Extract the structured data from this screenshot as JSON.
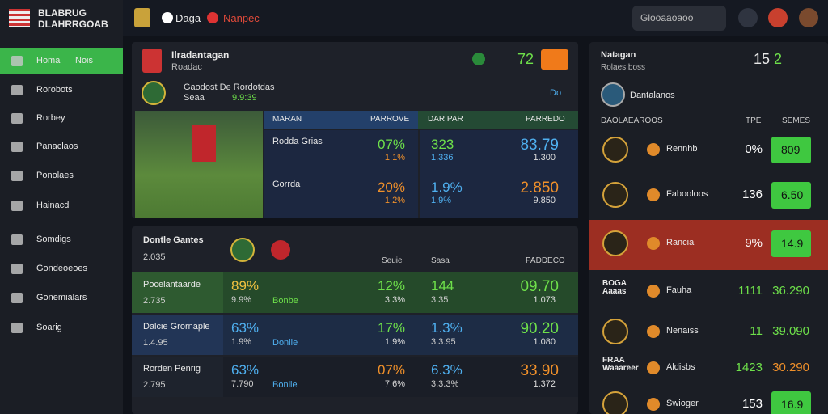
{
  "brand": {
    "line1": "BLABRUG",
    "line2": "DLAHRRGOAB"
  },
  "topnav": {
    "tabs": [
      "Daga",
      "Nanpec"
    ],
    "search": "Glooaaoaoo"
  },
  "sidebar": [
    {
      "label": "Homa",
      "badge": "Nois"
    },
    {
      "label": "Rorobots"
    },
    {
      "label": "Rorbey"
    },
    {
      "label": "Panaclaos"
    },
    {
      "label": "Ponolaes"
    },
    {
      "label": "Hainacd"
    },
    {
      "label": "Somdigs"
    },
    {
      "label": "Gondeoeoes"
    },
    {
      "label": "Gonemialars"
    },
    {
      "label": "Soarig"
    }
  ],
  "featured": {
    "title": "Ilradantagan",
    "subtitle": "Roadac",
    "event": "Gaodost De Rordotdas",
    "team": "Seaa",
    "time": "9.9:39",
    "score": "72",
    "live": "Do",
    "header": [
      "MARAN",
      "PARROVE",
      "DAR PAR",
      "PARREDO"
    ],
    "rows": [
      [
        "Rodda Grias",
        "07%",
        "1.1%",
        "323",
        "1.336",
        "83.79",
        "1.300"
      ],
      [
        "Gorrda",
        "20%",
        "1.2%",
        "1.9%",
        "1.9%",
        "2.850",
        "9.850"
      ]
    ]
  },
  "list": {
    "title": "Dontle Gantes",
    "sub": "2.035",
    "header": [
      "Seuie",
      "Sasa",
      "PADDECO"
    ],
    "rows": [
      [
        "Pocelantaarde",
        "2.735",
        "89%",
        "9.9%",
        "Bonbe",
        "12%",
        "3.3%",
        "144",
        "3.35",
        "09.70",
        "1.073"
      ],
      [
        "Dalcie Grornaple",
        "1.4.95",
        "63%",
        "1.9%",
        "Donlie",
        "17%",
        "1.9%",
        "1.3%",
        "3.3.95",
        "90.20",
        "1.080"
      ],
      [
        "Rorden Penrig",
        "2.795",
        "63%",
        "7.790",
        "Bonlie",
        "07%",
        "7.6%",
        "6.3%",
        "3.3.3%",
        "33.90",
        "1.372"
      ]
    ]
  },
  "side": {
    "title": "Natagan",
    "subtitle": "Rolaes boss",
    "score": [
      "15",
      "2"
    ],
    "chip": "Dantalanos",
    "header": [
      "DAOLAEAROOS",
      "TPE",
      "SEMES"
    ],
    "rows": [
      {
        "team": "Rennhb",
        "stat": "0%",
        "odd": "809"
      },
      {
        "team": "Fabooloos",
        "stat": "136",
        "odd": "6.50"
      },
      {
        "team": "Rancia",
        "stat": "9%",
        "odd": "14.9"
      },
      {
        "side": "BOGA Aaaas",
        "team": "Fauha",
        "stat": "1111",
        "odd": "36.290"
      },
      {
        "team": "Nenaiss",
        "stat": "11",
        "odd": "39.090"
      },
      {
        "side": "FRAA Waaareer",
        "team": "Aldisbs",
        "stat": "1423",
        "odd": "30.290"
      },
      {
        "team": "Swioger",
        "stat": "153",
        "odd": "16.9"
      }
    ]
  }
}
